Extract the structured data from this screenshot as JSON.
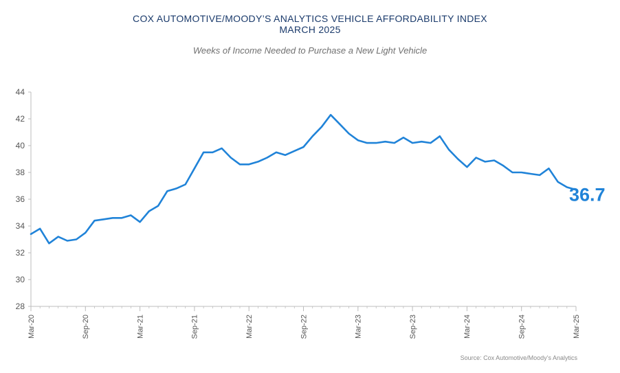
{
  "title_line1": "COX AUTOMOTIVE/MOODY’S ANALYTICS VEHICLE AFFORDABILITY INDEX",
  "title_line2": "MARCH 2025",
  "subtitle": "Weeks of Income Needed to Purchase a New Light Vehicle",
  "source": "Source: Cox Automotive/Moody’s Analytics",
  "colors": {
    "line": "#2083d8",
    "title": "#1a3a6b",
    "axis": "#bdbdbd",
    "label": "#555555"
  },
  "chart_data": {
    "type": "line",
    "title": "COX AUTOMOTIVE/MOODY’S ANALYTICS VEHICLE AFFORDABILITY INDEX MARCH 2025",
    "subtitle": "Weeks of Income Needed to Purchase a New Light Vehicle",
    "xlabel": "",
    "ylabel": "",
    "ylim": [
      28,
      44
    ],
    "yticks": [
      28,
      30,
      32,
      34,
      36,
      38,
      40,
      42,
      44
    ],
    "xtick_labels": [
      "Mar-20",
      "Sep-20",
      "Mar-21",
      "Sep-21",
      "Mar-22",
      "Sep-22",
      "Mar-23",
      "Sep-23",
      "Mar-24",
      "Sep-24",
      "Mar-25"
    ],
    "grid": false,
    "end_label": "36.7",
    "x": [
      "Mar-20",
      "Apr-20",
      "May-20",
      "Jun-20",
      "Jul-20",
      "Aug-20",
      "Sep-20",
      "Oct-20",
      "Nov-20",
      "Dec-20",
      "Jan-21",
      "Feb-21",
      "Mar-21",
      "Apr-21",
      "May-21",
      "Jun-21",
      "Jul-21",
      "Aug-21",
      "Sep-21",
      "Oct-21",
      "Nov-21",
      "Dec-21",
      "Jan-22",
      "Feb-22",
      "Mar-22",
      "Apr-22",
      "May-22",
      "Jun-22",
      "Jul-22",
      "Aug-22",
      "Sep-22",
      "Oct-22",
      "Nov-22",
      "Dec-22",
      "Jan-23",
      "Feb-23",
      "Mar-23",
      "Apr-23",
      "May-23",
      "Jun-23",
      "Jul-23",
      "Aug-23",
      "Sep-23",
      "Oct-23",
      "Nov-23",
      "Dec-23",
      "Jan-24",
      "Feb-24",
      "Mar-24",
      "Apr-24",
      "May-24",
      "Jun-24",
      "Jul-24",
      "Aug-24",
      "Sep-24",
      "Oct-24",
      "Nov-24",
      "Dec-24",
      "Jan-25",
      "Feb-25",
      "Mar-25"
    ],
    "series": [
      {
        "values": [
          33.4,
          33.8,
          32.7,
          33.2,
          32.9,
          33.0,
          33.5,
          34.4,
          34.5,
          34.6,
          34.6,
          34.8,
          34.3,
          35.1,
          35.5,
          36.6,
          36.8,
          37.1,
          38.3,
          39.5,
          39.5,
          39.8,
          39.1,
          38.6,
          38.6,
          38.8,
          39.1,
          39.5,
          39.3,
          39.6,
          39.9,
          40.7,
          41.4,
          42.3,
          41.6,
          40.9,
          40.4,
          40.2,
          40.2,
          40.3,
          40.2,
          40.6,
          40.2,
          40.3,
          40.2,
          40.7,
          39.7,
          39.0,
          38.4,
          39.1,
          38.8,
          38.9,
          38.5,
          38.0,
          38.0,
          37.9,
          37.8,
          38.3,
          37.3,
          36.9,
          36.7
        ]
      }
    ]
  }
}
